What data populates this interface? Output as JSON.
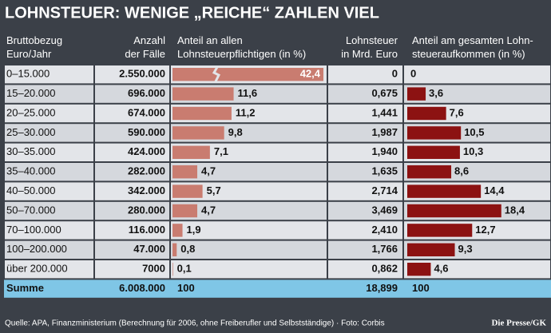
{
  "title": "LOHNSTEUER: WENIGE „REICHE“ ZAHLEN VIEL",
  "table": {
    "headers": [
      "Bruttobezug Euro/Jahr",
      "Anzahl der Fälle",
      "Anteil an allen Lohnsteuerpflichtigen (in %)",
      "Lohnsteuer in Mrd. Euro",
      "Anteil am gesamten Lohnsteueraufkommen (in %)"
    ],
    "rows": [
      {
        "bracket": "0–15.000",
        "cases": "2.550.000",
        "share": 42.4,
        "share_label": "42,4",
        "tax": "0",
        "tax_share": 0,
        "tax_share_label": "0"
      },
      {
        "bracket": "15–20.000",
        "cases": "696.000",
        "share": 11.6,
        "share_label": "11,6",
        "tax": "0,675",
        "tax_share": 3.6,
        "tax_share_label": "3,6"
      },
      {
        "bracket": "20–25.000",
        "cases": "674.000",
        "share": 11.2,
        "share_label": "11,2",
        "tax": "1,441",
        "tax_share": 7.6,
        "tax_share_label": "7,6"
      },
      {
        "bracket": "25–30.000",
        "cases": "590.000",
        "share": 9.8,
        "share_label": "9,8",
        "tax": "1,987",
        "tax_share": 10.5,
        "tax_share_label": "10,5"
      },
      {
        "bracket": "30–35.000",
        "cases": "424.000",
        "share": 7.1,
        "share_label": "7,1",
        "tax": "1,940",
        "tax_share": 10.3,
        "tax_share_label": "10,3"
      },
      {
        "bracket": "35–40.000",
        "cases": "282.000",
        "share": 4.7,
        "share_label": "4,7",
        "tax": "1,635",
        "tax_share": 8.6,
        "tax_share_label": "8,6"
      },
      {
        "bracket": "40–50.000",
        "cases": "342.000",
        "share": 5.7,
        "share_label": "5,7",
        "tax": "2,714",
        "tax_share": 14.4,
        "tax_share_label": "14,4"
      },
      {
        "bracket": "50–70.000",
        "cases": "280.000",
        "share": 4.7,
        "share_label": "4,7",
        "tax": "3,469",
        "tax_share": 18.4,
        "tax_share_label": "18,4"
      },
      {
        "bracket": "70–100.000",
        "cases": "116.000",
        "share": 1.9,
        "share_label": "1,9",
        "tax": "2,410",
        "tax_share": 12.7,
        "tax_share_label": "12,7"
      },
      {
        "bracket": "100–200.000",
        "cases": "47.000",
        "share": 0.8,
        "share_label": "0,8",
        "tax": "1,766",
        "tax_share": 9.3,
        "tax_share_label": "9,3"
      },
      {
        "bracket": "über 200.000",
        "cases": "7000",
        "share": 0.1,
        "share_label": "0,1",
        "tax": "0,862",
        "tax_share": 4.6,
        "tax_share_label": "4,6"
      }
    ],
    "total": [
      "Summe",
      "6.008.000",
      "100",
      "18,899",
      "100"
    ],
    "share_color": "#c97c70",
    "tax_share_color": "#8c1212"
  },
  "source": "Quelle: APA, Finanzministerium (Berechnung für 2006, ohne Freiberufler und Selbstständige) · Foto: Corbis",
  "credit": "Die Presse/GK"
}
